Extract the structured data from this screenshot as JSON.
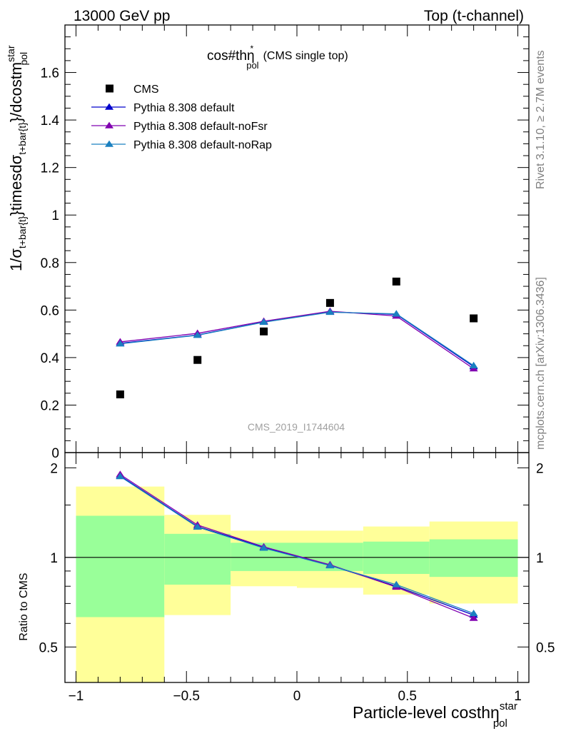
{
  "header": {
    "left": "13000 GeV pp",
    "right": "Top (t-channel)"
  },
  "side_labels": {
    "rivet": "Rivet 3.1.10, ≥ 2.7M events",
    "mcplots": "mcplots.cern.ch [arXiv:1306.3436]"
  },
  "watermark": "CMS_2019_I1744604",
  "plot_title": {
    "main": "cos#thη",
    "sup": "*",
    "sub": "pol",
    "suffix": "(CMS single top)"
  },
  "axes": {
    "ylabel_main": "1/σ",
    "ylabel_sub1": "t+bar{t}",
    "ylabel_mid": "}timesdσ",
    "ylabel_sub2": "t+bar{t}",
    "ylabel_tail": "}/dcostm",
    "ylabel_sup": "star",
    "ylabel_sub3": "pol",
    "ratio_ylabel": "Ratio to CMS",
    "xlabel_main": "Particle-level costhη",
    "xlabel_sup": "star",
    "xlabel_sub": "pol"
  },
  "colors": {
    "cms": "#000000",
    "default": "#0000cc",
    "noFsr": "#8000b0",
    "noRap": "#1a80c0",
    "band_inner": "#99ff99",
    "band_outer": "#ffff99"
  },
  "chart_data": {
    "type": "line",
    "x_bin_edges": [
      -1.0,
      -0.6,
      -0.3,
      0.0,
      0.3,
      0.6,
      1.0
    ],
    "x": [
      -0.8,
      -0.45,
      -0.15,
      0.15,
      0.45,
      0.8
    ],
    "xlim": [
      -1.05,
      1.05
    ],
    "ylim": [
      0,
      1.8
    ],
    "yticks": [
      0,
      0.2,
      0.4,
      0.6,
      0.8,
      1,
      1.2,
      1.4,
      1.6
    ],
    "ytick_labels": [
      "0",
      "0.2",
      "0.4",
      "0.6",
      "0.8",
      "1",
      "1.2",
      "1.4",
      "1.6"
    ],
    "xticks": [
      -1,
      -0.5,
      0,
      0.5,
      1
    ],
    "xtick_labels": [
      "−1",
      "−0.5",
      "0",
      "0.5",
      "1"
    ],
    "legend_position": "top-left",
    "series": [
      {
        "name": "CMS",
        "style": "marker-square",
        "values": [
          0.245,
          0.39,
          0.51,
          0.63,
          0.72,
          0.565
        ]
      },
      {
        "name": "Pythia 8.308 default",
        "style": "line-triangle",
        "values": [
          0.46,
          0.495,
          0.55,
          0.592,
          0.582,
          0.362
        ]
      },
      {
        "name": "Pythia 8.308 default-noFsr",
        "style": "line-triangle",
        "values": [
          0.466,
          0.502,
          0.553,
          0.595,
          0.575,
          0.353
        ]
      },
      {
        "name": "Pythia 8.308 default-noRap",
        "style": "line-triangle",
        "values": [
          0.458,
          0.494,
          0.549,
          0.591,
          0.584,
          0.366
        ]
      }
    ],
    "ratio": {
      "ylim": [
        0.38,
        2.25
      ],
      "yticks": [
        0.5,
        1,
        2
      ],
      "ytick_labels": [
        "0.5",
        "1",
        "2"
      ],
      "series": [
        {
          "name": "Pythia 8.308 default",
          "values": [
            1.88,
            1.27,
            1.08,
            0.94,
            0.8,
            0.64
          ]
        },
        {
          "name": "Pythia 8.308 default-noFsr",
          "values": [
            1.9,
            1.285,
            1.085,
            0.945,
            0.795,
            0.625
          ]
        },
        {
          "name": "Pythia 8.308 default-noRap",
          "values": [
            1.87,
            1.265,
            1.075,
            0.938,
            0.81,
            0.648
          ]
        }
      ],
      "band_inner": [
        [
          0.63,
          1.38
        ],
        [
          0.81,
          1.2
        ],
        [
          0.9,
          1.12
        ],
        [
          0.9,
          1.12
        ],
        [
          0.88,
          1.13
        ],
        [
          0.86,
          1.15
        ]
      ],
      "band_outer": [
        [
          0.38,
          1.73
        ],
        [
          0.64,
          1.39
        ],
        [
          0.8,
          1.23
        ],
        [
          0.79,
          1.23
        ],
        [
          0.75,
          1.27
        ],
        [
          0.7,
          1.32
        ]
      ]
    }
  }
}
